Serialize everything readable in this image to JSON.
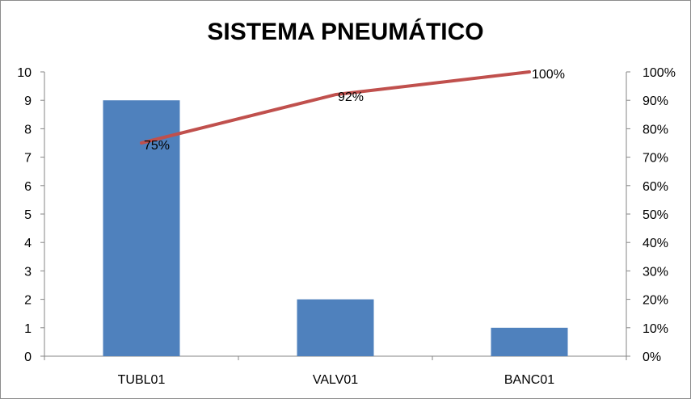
{
  "chart_data": {
    "type": "bar",
    "title": "SISTEMA PNEUMÁTICO",
    "categories": [
      "TUBL01",
      "VALV01",
      "BANC01"
    ],
    "series": [
      {
        "type": "bar",
        "axis": "left",
        "values": [
          9,
          2,
          1
        ],
        "color": "#4f81bd"
      },
      {
        "type": "line",
        "axis": "right",
        "values": [
          75,
          92,
          100
        ],
        "labels": [
          "75%",
          "92%",
          "100%"
        ],
        "color": "#c0504d"
      }
    ],
    "ylim": [
      0,
      10
    ],
    "yticks": [
      "0",
      "1",
      "2",
      "3",
      "4",
      "5",
      "6",
      "7",
      "8",
      "9",
      "10"
    ],
    "y2lim": [
      0,
      100
    ],
    "y2ticks": [
      "0%",
      "10%",
      "20%",
      "30%",
      "40%",
      "50%",
      "60%",
      "70%",
      "80%",
      "90%",
      "100%"
    ],
    "grid": false,
    "legend": "none"
  }
}
